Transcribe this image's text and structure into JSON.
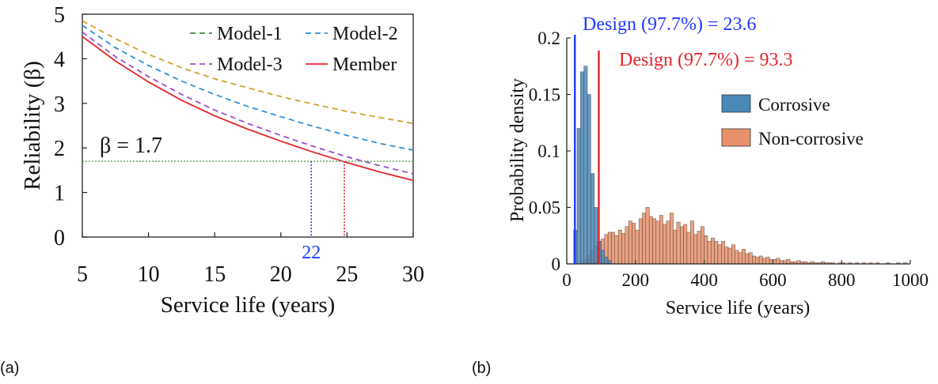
{
  "panel_labels": {
    "a": "(a)",
    "b": "(b)"
  },
  "chart_data": [
    {
      "type": "line",
      "xlabel": "Service life (years)",
      "ylabel": "Reliability (β)",
      "xlim": [
        5,
        30
      ],
      "ylim": [
        0,
        5
      ],
      "xticks": [
        "5",
        "10",
        "15",
        "20",
        "25",
        "30"
      ],
      "yticks": [
        "0",
        "1",
        "2",
        "3",
        "4",
        "5"
      ],
      "grid": false,
      "legend": "top-right",
      "x": [
        5,
        7.5,
        10,
        12.5,
        15,
        17.5,
        20,
        22.5,
        25,
        27.5,
        30
      ],
      "series": [
        {
          "name": "Model-1",
          "style": "dashed",
          "color": "#d4a02a",
          "values": [
            4.85,
            4.45,
            4.1,
            3.8,
            3.55,
            3.35,
            3.15,
            2.98,
            2.82,
            2.68,
            2.55
          ]
        },
        {
          "name": "Model-2",
          "style": "dashed",
          "color": "#2e8fd6",
          "values": [
            4.75,
            4.25,
            3.85,
            3.5,
            3.2,
            2.93,
            2.7,
            2.48,
            2.28,
            2.1,
            1.95
          ]
        },
        {
          "name": "Model-3",
          "style": "dashed",
          "color": "#9b4fc8",
          "values": [
            4.6,
            4.05,
            3.6,
            3.2,
            2.85,
            2.55,
            2.28,
            2.03,
            1.8,
            1.6,
            1.42
          ]
        },
        {
          "name": "Member",
          "style": "solid",
          "color": "#e4252b",
          "values": [
            4.5,
            3.95,
            3.48,
            3.07,
            2.72,
            2.42,
            2.15,
            1.9,
            1.67,
            1.46,
            1.27
          ]
        }
      ],
      "legend_colors": {
        "Model-1": "#3a8a3a"
      },
      "annotations": {
        "threshold_label": "β = 1.7",
        "threshold_value": 1.7,
        "threshold_color": "#4a9a4a",
        "marker_blue_x": 22.3,
        "marker_blue_label": "22",
        "marker_blue_color": "#1f3bff",
        "marker_red_x": 24.8,
        "marker_red_color": "#e4252b"
      }
    },
    {
      "type": "bar",
      "subtype": "histogram",
      "xlabel": "Service life (years)",
      "ylabel": "Probability density",
      "xlim": [
        0,
        1000
      ],
      "ylim": [
        0,
        0.2
      ],
      "xticks": [
        "0",
        "200",
        "400",
        "600",
        "800",
        "1000"
      ],
      "yticks": [
        "0",
        "0.05",
        "0.1",
        "0.15",
        "0.2"
      ],
      "legend": "right",
      "bin_width": 10,
      "series": [
        {
          "name": "Corrosive",
          "color": "#4a88b8",
          "bin_start": 20,
          "values": [
            0.03,
            0.12,
            0.17,
            0.175,
            0.15,
            0.08,
            0.05,
            0.02,
            0.012,
            0.006,
            0.003
          ]
        },
        {
          "name": "Non-corrosive",
          "color": "#e8906a",
          "bin_start": 40,
          "values": [
            0.002,
            0.004,
            0.008,
            0.012,
            0.016,
            0.02,
            0.022,
            0.026,
            0.028,
            0.028,
            0.025,
            0.03,
            0.027,
            0.033,
            0.038,
            0.036,
            0.03,
            0.04,
            0.045,
            0.05,
            0.042,
            0.04,
            0.038,
            0.043,
            0.035,
            0.038,
            0.045,
            0.03,
            0.037,
            0.033,
            0.035,
            0.028,
            0.038,
            0.026,
            0.029,
            0.033,
            0.025,
            0.02,
            0.023,
            0.02,
            0.017,
            0.02,
            0.015,
            0.014,
            0.017,
            0.012,
            0.01,
            0.013,
            0.009,
            0.01,
            0.007,
            0.006,
            0.007,
            0.005,
            0.006,
            0.004,
            0.004,
            0.005,
            0.003,
            0.003,
            0.004,
            0.002,
            0.002,
            0.003,
            0.002,
            0.002,
            0.001,
            0.002,
            0.001,
            0.001,
            0.002,
            0.001,
            0.001,
            0.001,
            0,
            0.001,
            0.001,
            0,
            0.001,
            0,
            0.001,
            0,
            0.001,
            0,
            0.001,
            0,
            0.001,
            0,
            0,
            0.001,
            0,
            0,
            0.001,
            0,
            0.001
          ]
        }
      ],
      "annotations": {
        "design_corrosive_label": "Design (97.7%) = 23.6",
        "design_corrosive_x": 23.6,
        "design_corrosive_color": "#1f3bff",
        "design_noncorrosive_label": "Design (97.7%) = 93.3",
        "design_noncorrosive_x": 93.3,
        "design_noncorrosive_color": "#e4252b"
      }
    }
  ]
}
